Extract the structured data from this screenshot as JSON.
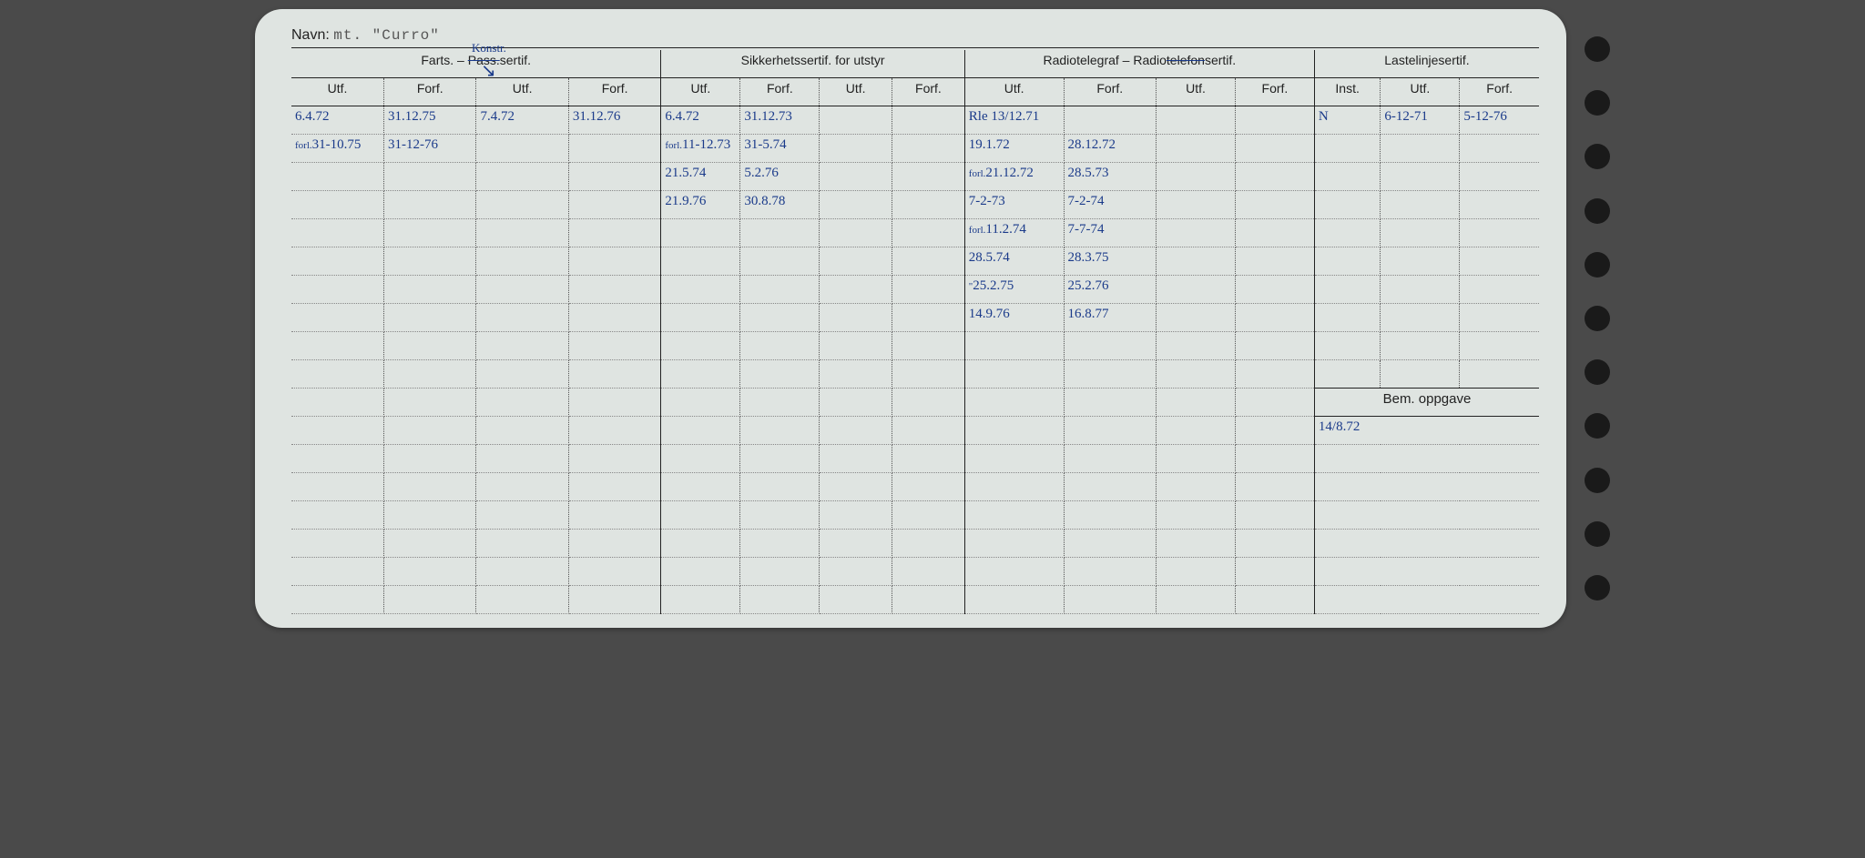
{
  "navn_label": "Navn:",
  "navn_value": "mt. \"Curro\"",
  "header_annotation": "Konstr.",
  "groups": {
    "farts": "Farts. – Pass.sertif.",
    "sikkerhet": "Sikkerhetssertif. for utstyr",
    "radio": "Radiotelegraf – Radiotelefonsertif.",
    "lastelinje": "Lastelinjesertif."
  },
  "sub": {
    "utf": "Utf.",
    "forf": "Forf.",
    "inst": "Inst."
  },
  "bem_label": "Bem. oppgave",
  "bem_value": "14/8.72",
  "colors": {
    "ink": "#1a3a8a",
    "paper": "#dfe4e1",
    "print": "#222222",
    "dots": "#888888",
    "background": "#4a4a4a",
    "typed": "#555555"
  },
  "rows": [
    {
      "c1": "6.4.72",
      "c2": "31.12.75",
      "c3": "7.4.72",
      "c4": "31.12.76",
      "c5": "6.4.72",
      "c6": "31.12.73",
      "c7": "",
      "c8": "",
      "c9": "Rle 13/12.71",
      "c10": "",
      "c11": "",
      "c12": "",
      "c13": "N",
      "c14": "6-12-71",
      "c15": "5-12-76"
    },
    {
      "c1_prefix": "forl.",
      "c1": "31-10.75",
      "c2": "31-12-76",
      "c3": "",
      "c4": "",
      "c5_prefix": "forl.",
      "c5": "11-12.73",
      "c6": "31-5.74",
      "c7": "",
      "c8": "",
      "c9": "19.1.72",
      "c10": "28.12.72",
      "c11": "",
      "c12": "",
      "c13": "",
      "c14": "",
      "c15": ""
    },
    {
      "c1": "",
      "c2": "",
      "c3": "",
      "c4": "",
      "c5": "21.5.74",
      "c6": "5.2.76",
      "c7": "",
      "c8": "",
      "c9_prefix": "forl.",
      "c9": "21.12.72",
      "c10": "28.5.73",
      "c11": "",
      "c12": "",
      "c13": "",
      "c14": "",
      "c15": ""
    },
    {
      "c1": "",
      "c2": "",
      "c3": "",
      "c4": "",
      "c5": "21.9.76",
      "c6": "30.8.78",
      "c7": "",
      "c8": "",
      "c9": "7-2-73",
      "c10": "7-2-74",
      "c11": "",
      "c12": "",
      "c13": "",
      "c14": "",
      "c15": ""
    },
    {
      "c1": "",
      "c2": "",
      "c3": "",
      "c4": "",
      "c5": "",
      "c6": "",
      "c7": "",
      "c8": "",
      "c9_prefix": "forl.",
      "c9": "11.2.74",
      "c10": "7-7-74",
      "c11": "",
      "c12": "",
      "c13": "",
      "c14": "",
      "c15": ""
    },
    {
      "c1": "",
      "c2": "",
      "c3": "",
      "c4": "",
      "c5": "",
      "c6": "",
      "c7": "",
      "c8": "",
      "c9": "28.5.74",
      "c10": "28.3.75",
      "c11": "",
      "c12": "",
      "c13": "",
      "c14": "",
      "c15": ""
    },
    {
      "c1": "",
      "c2": "",
      "c3": "",
      "c4": "",
      "c5": "",
      "c6": "",
      "c7": "",
      "c8": "",
      "c9_prefix": "\"",
      "c9": "25.2.75",
      "c10": "25.2.76",
      "c11": "",
      "c12": "",
      "c13": "",
      "c14": "",
      "c15": ""
    },
    {
      "c1": "",
      "c2": "",
      "c3": "",
      "c4": "",
      "c5": "",
      "c6": "",
      "c7": "",
      "c8": "",
      "c9": "14.9.76",
      "c10": "16.8.77",
      "c11": "",
      "c12": "",
      "c13": "",
      "c14": "",
      "c15": ""
    }
  ]
}
